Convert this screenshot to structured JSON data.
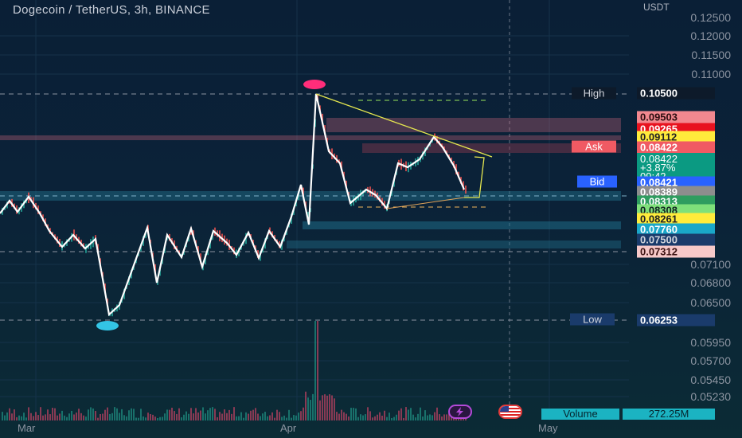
{
  "chart": {
    "title": "Dogecoin / TetherUS, 3h, BINANCE",
    "currency": "USDT"
  },
  "price_axis": [
    "0.12500",
    "0.12000",
    "0.11500",
    "0.11000",
    "0.07100",
    "0.06800",
    "0.06500",
    "0.05950",
    "0.05700",
    "0.05450",
    "0.05230"
  ],
  "tags": {
    "high": {
      "label": "High",
      "value": "0.10500"
    },
    "p1": "0.09503",
    "p2": "0.09265",
    "p3": "0.09112",
    "ask": {
      "label": "Ask",
      "value": "0.08422"
    },
    "last": {
      "value": "0.08422",
      "change": "+3.87%",
      "countdown": "09:42"
    },
    "bid": {
      "label": "Bid",
      "value": "0.08421"
    },
    "p4": "0.08389",
    "p5": "0.08313",
    "p6": "0.08308",
    "p7": "0.08261",
    "p8": "0.07760",
    "p9": "0.07500",
    "p10": "0.07312",
    "low": {
      "label": "Low",
      "value": "0.06253"
    }
  },
  "time_axis": [
    "Mar",
    "Apr",
    "May"
  ],
  "volume": {
    "label": "Volume",
    "value": "272.25M"
  },
  "colors": {
    "up": "#26a69a",
    "down": "#ef5350",
    "pattern": "#ffffff",
    "trend": "#e6e84f",
    "ask_tag": "#f05a63",
    "bid_tag": "#2962ff",
    "high_marker": "#ff2d7a",
    "low_marker": "#33c5e5"
  }
}
